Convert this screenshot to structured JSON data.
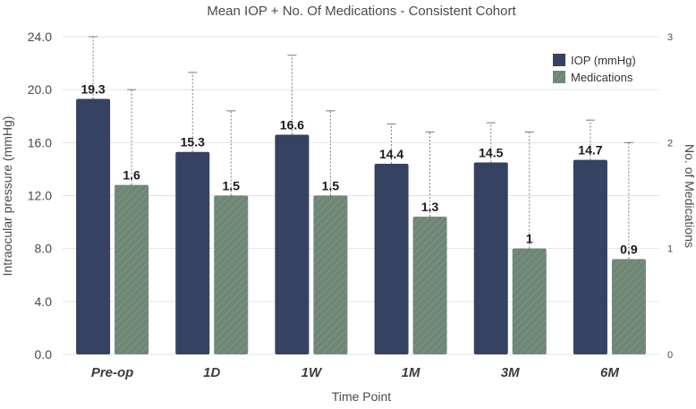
{
  "chart_data": {
    "type": "bar",
    "title": "Mean IOP + No. Of Medications - Consistent Cohort",
    "xlabel": "Time Point",
    "ylabel": "Intraocular pressure (mmHg)",
    "y2label": "No. of Medications",
    "categories": [
      "Pre-op",
      "1D",
      "1W",
      "1M",
      "3M",
      "6M"
    ],
    "ylim": [
      0,
      24
    ],
    "y2lim": [
      0,
      3
    ],
    "yticks": [
      "0.0",
      "4.0",
      "8.0",
      "12.0",
      "16.0",
      "20.0",
      "24.0"
    ],
    "y2ticks": [
      "0",
      "1",
      "2",
      "3"
    ],
    "grid": true,
    "legend_position": "top-right",
    "series": [
      {
        "name": "IOP (mmHg)",
        "axis": "left",
        "color": "#354261",
        "values": [
          19.3,
          15.3,
          16.6,
          14.4,
          14.5,
          14.7
        ],
        "labels": [
          "19.3",
          "15.3",
          "16.6",
          "14.4",
          "14.5",
          "14.7"
        ],
        "error_upper": [
          24.0,
          21.3,
          22.6,
          17.4,
          17.5,
          17.7
        ]
      },
      {
        "name": "Medications",
        "axis": "right",
        "color": "#6e8676",
        "values": [
          1.6,
          1.5,
          1.5,
          1.3,
          1.0,
          0.9
        ],
        "labels": [
          "1.6",
          "1.5",
          "1.5",
          "1.3",
          "1",
          "0.9"
        ],
        "error_upper": [
          2.5,
          2.3,
          2.3,
          2.1,
          2.1,
          2.0
        ]
      }
    ]
  }
}
